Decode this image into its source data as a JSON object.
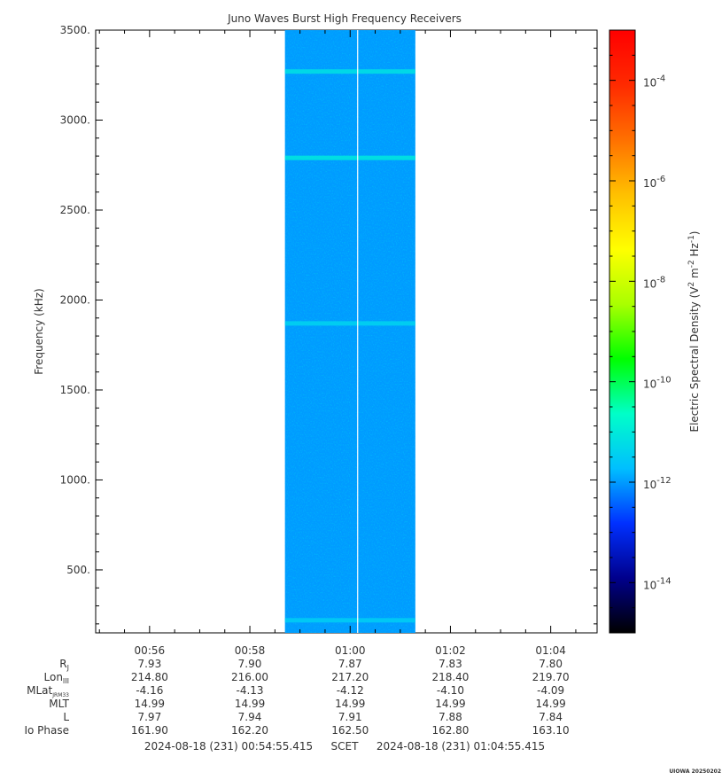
{
  "chart_data": {
    "type": "heatmap",
    "title": "Juno Waves Burst High Frequency Receivers",
    "ylabel": "Frequency (kHz)",
    "ylim": [
      150,
      3500
    ],
    "yticks": [
      "500.",
      "1000.",
      "1500.",
      "2000.",
      "2500.",
      "3000.",
      "3500."
    ],
    "ytick_values": [
      500,
      1000,
      1500,
      2000,
      2500,
      3000,
      3500
    ],
    "xlim_minutes": [
      54.925,
      64.925
    ],
    "xticks": [
      "00:56",
      "00:58",
      "01:00",
      "01:02",
      "01:04"
    ],
    "xtick_minutes": [
      56,
      58,
      60,
      62,
      64
    ],
    "data_interval_minutes": [
      58.7,
      61.3
    ],
    "gap_line_minute": 60.15,
    "colorbar": {
      "label_parts": [
        "Electric Spectral Density (V",
        "2",
        " m",
        "-2",
        " Hz",
        "-1",
        ")"
      ],
      "log_range": [
        -15,
        -3
      ],
      "ticks": [
        {
          "base": "10",
          "exp": "-4",
          "log": -4
        },
        {
          "base": "10",
          "exp": "-6",
          "log": -6
        },
        {
          "base": "10",
          "exp": "-8",
          "log": -8
        },
        {
          "base": "10",
          "exp": "-10",
          "log": -10
        },
        {
          "base": "10",
          "exp": "-12",
          "log": -12
        },
        {
          "base": "10",
          "exp": "-14",
          "log": -14
        }
      ],
      "colors": [
        "#000000",
        "#00008c",
        "#0030ff",
        "#00bfff",
        "#00ffc8",
        "#00ff00",
        "#aaff00",
        "#ffff00",
        "#ffc000",
        "#ff7000",
        "#ff2a00",
        "#ff0000"
      ]
    },
    "background_log_density": -12,
    "emission_bands": [
      {
        "frequency_khz": 3270,
        "log_density": -11.2
      },
      {
        "frequency_khz": 2790,
        "log_density": -11.1
      },
      {
        "frequency_khz": 1870,
        "log_density": -11.4
      },
      {
        "frequency_khz": 220,
        "log_density": -11.5
      }
    ],
    "ephemeris": {
      "rows": [
        {
          "label": "R",
          "sub": "J",
          "values": [
            "7.93",
            "7.90",
            "7.87",
            "7.83",
            "7.80"
          ]
        },
        {
          "label": "Lon",
          "sub": "III",
          "values": [
            "214.80",
            "216.00",
            "217.20",
            "218.40",
            "219.70"
          ]
        },
        {
          "label": "MLat",
          "sub": "JRM33",
          "values": [
            "-4.16",
            "-4.13",
            "-4.12",
            "-4.10",
            "-4.09"
          ]
        },
        {
          "label": "MLT",
          "sub": "",
          "values": [
            "14.99",
            "14.99",
            "14.99",
            "14.99",
            "14.99"
          ]
        },
        {
          "label": "L",
          "sub": "",
          "values": [
            "7.97",
            "7.94",
            "7.91",
            "7.88",
            "7.84"
          ]
        },
        {
          "label": "Io Phase",
          "sub": "",
          "values": [
            "161.90",
            "162.20",
            "162.50",
            "162.80",
            "163.10"
          ]
        }
      ]
    },
    "time_range": {
      "start": "2024-08-18 (231) 00:54:55.415",
      "mid": "SCET",
      "end": "2024-08-18 (231) 01:04:55.415"
    }
  },
  "footer_stamp": "UIOWA 20250202"
}
